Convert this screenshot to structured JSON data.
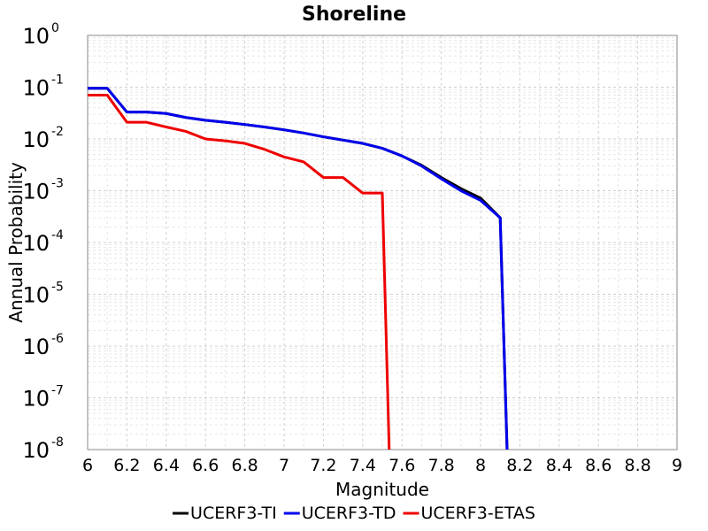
{
  "chart_data": {
    "type": "line",
    "title": "Shoreline",
    "xlabel": "Magnitude",
    "ylabel": "Annual Probability",
    "xlim": [
      6,
      9
    ],
    "ylim": [
      1e-08,
      1
    ],
    "yscale": "log",
    "grid": true,
    "legend_position": "bottom-center",
    "x_ticks": [
      "6",
      "6.2",
      "6.4",
      "6.6",
      "6.8",
      "7",
      "7.2",
      "7.4",
      "7.6",
      "7.8",
      "8",
      "8.2",
      "8.4",
      "8.6",
      "8.8",
      "9"
    ],
    "y_ticks": [
      {
        "base": "10",
        "exp": "0"
      },
      {
        "base": "10",
        "exp": "-1"
      },
      {
        "base": "10",
        "exp": "-2"
      },
      {
        "base": "10",
        "exp": "-3"
      },
      {
        "base": "10",
        "exp": "-4"
      },
      {
        "base": "10",
        "exp": "-5"
      },
      {
        "base": "10",
        "exp": "-6"
      },
      {
        "base": "10",
        "exp": "-7"
      },
      {
        "base": "10",
        "exp": "-8"
      }
    ],
    "series": [
      {
        "name": "UCERF3-TI",
        "color": "#000000",
        "points": [
          [
            6.0,
            0.095
          ],
          [
            6.1,
            0.095
          ],
          [
            6.2,
            0.033
          ],
          [
            6.3,
            0.033
          ],
          [
            6.4,
            0.031
          ],
          [
            6.5,
            0.026
          ],
          [
            6.6,
            0.023
          ],
          [
            6.7,
            0.021
          ],
          [
            6.8,
            0.019
          ],
          [
            6.9,
            0.017
          ],
          [
            7.0,
            0.015
          ],
          [
            7.1,
            0.013
          ],
          [
            7.2,
            0.011
          ],
          [
            7.3,
            0.0095
          ],
          [
            7.4,
            0.0082
          ],
          [
            7.5,
            0.0066
          ],
          [
            7.6,
            0.0047
          ],
          [
            7.7,
            0.0031
          ],
          [
            7.8,
            0.0018
          ],
          [
            7.9,
            0.0011
          ],
          [
            8.0,
            0.00072
          ],
          [
            8.1,
            0.0003
          ],
          [
            8.135,
            1e-08
          ]
        ]
      },
      {
        "name": "UCERF3-TD",
        "color": "#0000ee",
        "points": [
          [
            6.0,
            0.095
          ],
          [
            6.1,
            0.095
          ],
          [
            6.2,
            0.033
          ],
          [
            6.3,
            0.033
          ],
          [
            6.4,
            0.031
          ],
          [
            6.5,
            0.026
          ],
          [
            6.6,
            0.023
          ],
          [
            6.7,
            0.021
          ],
          [
            6.8,
            0.019
          ],
          [
            6.9,
            0.017
          ],
          [
            7.0,
            0.015
          ],
          [
            7.1,
            0.013
          ],
          [
            7.2,
            0.011
          ],
          [
            7.3,
            0.0095
          ],
          [
            7.4,
            0.0082
          ],
          [
            7.5,
            0.0066
          ],
          [
            7.6,
            0.0047
          ],
          [
            7.7,
            0.003
          ],
          [
            7.8,
            0.0017
          ],
          [
            7.9,
            0.001
          ],
          [
            8.0,
            0.00065
          ],
          [
            8.1,
            0.0003
          ],
          [
            8.135,
            1e-08
          ]
        ]
      },
      {
        "name": "UCERF3-ETAS",
        "color": "#ee0000",
        "points": [
          [
            6.0,
            0.07
          ],
          [
            6.1,
            0.07
          ],
          [
            6.2,
            0.021
          ],
          [
            6.3,
            0.021
          ],
          [
            6.4,
            0.017
          ],
          [
            6.5,
            0.014
          ],
          [
            6.6,
            0.01
          ],
          [
            6.7,
            0.0092
          ],
          [
            6.8,
            0.0082
          ],
          [
            6.9,
            0.0063
          ],
          [
            7.0,
            0.0045
          ],
          [
            7.1,
            0.0036
          ],
          [
            7.2,
            0.0018
          ],
          [
            7.3,
            0.0018
          ],
          [
            7.4,
            0.0009
          ],
          [
            7.5,
            0.0009
          ],
          [
            7.535,
            1e-08
          ]
        ]
      }
    ]
  }
}
